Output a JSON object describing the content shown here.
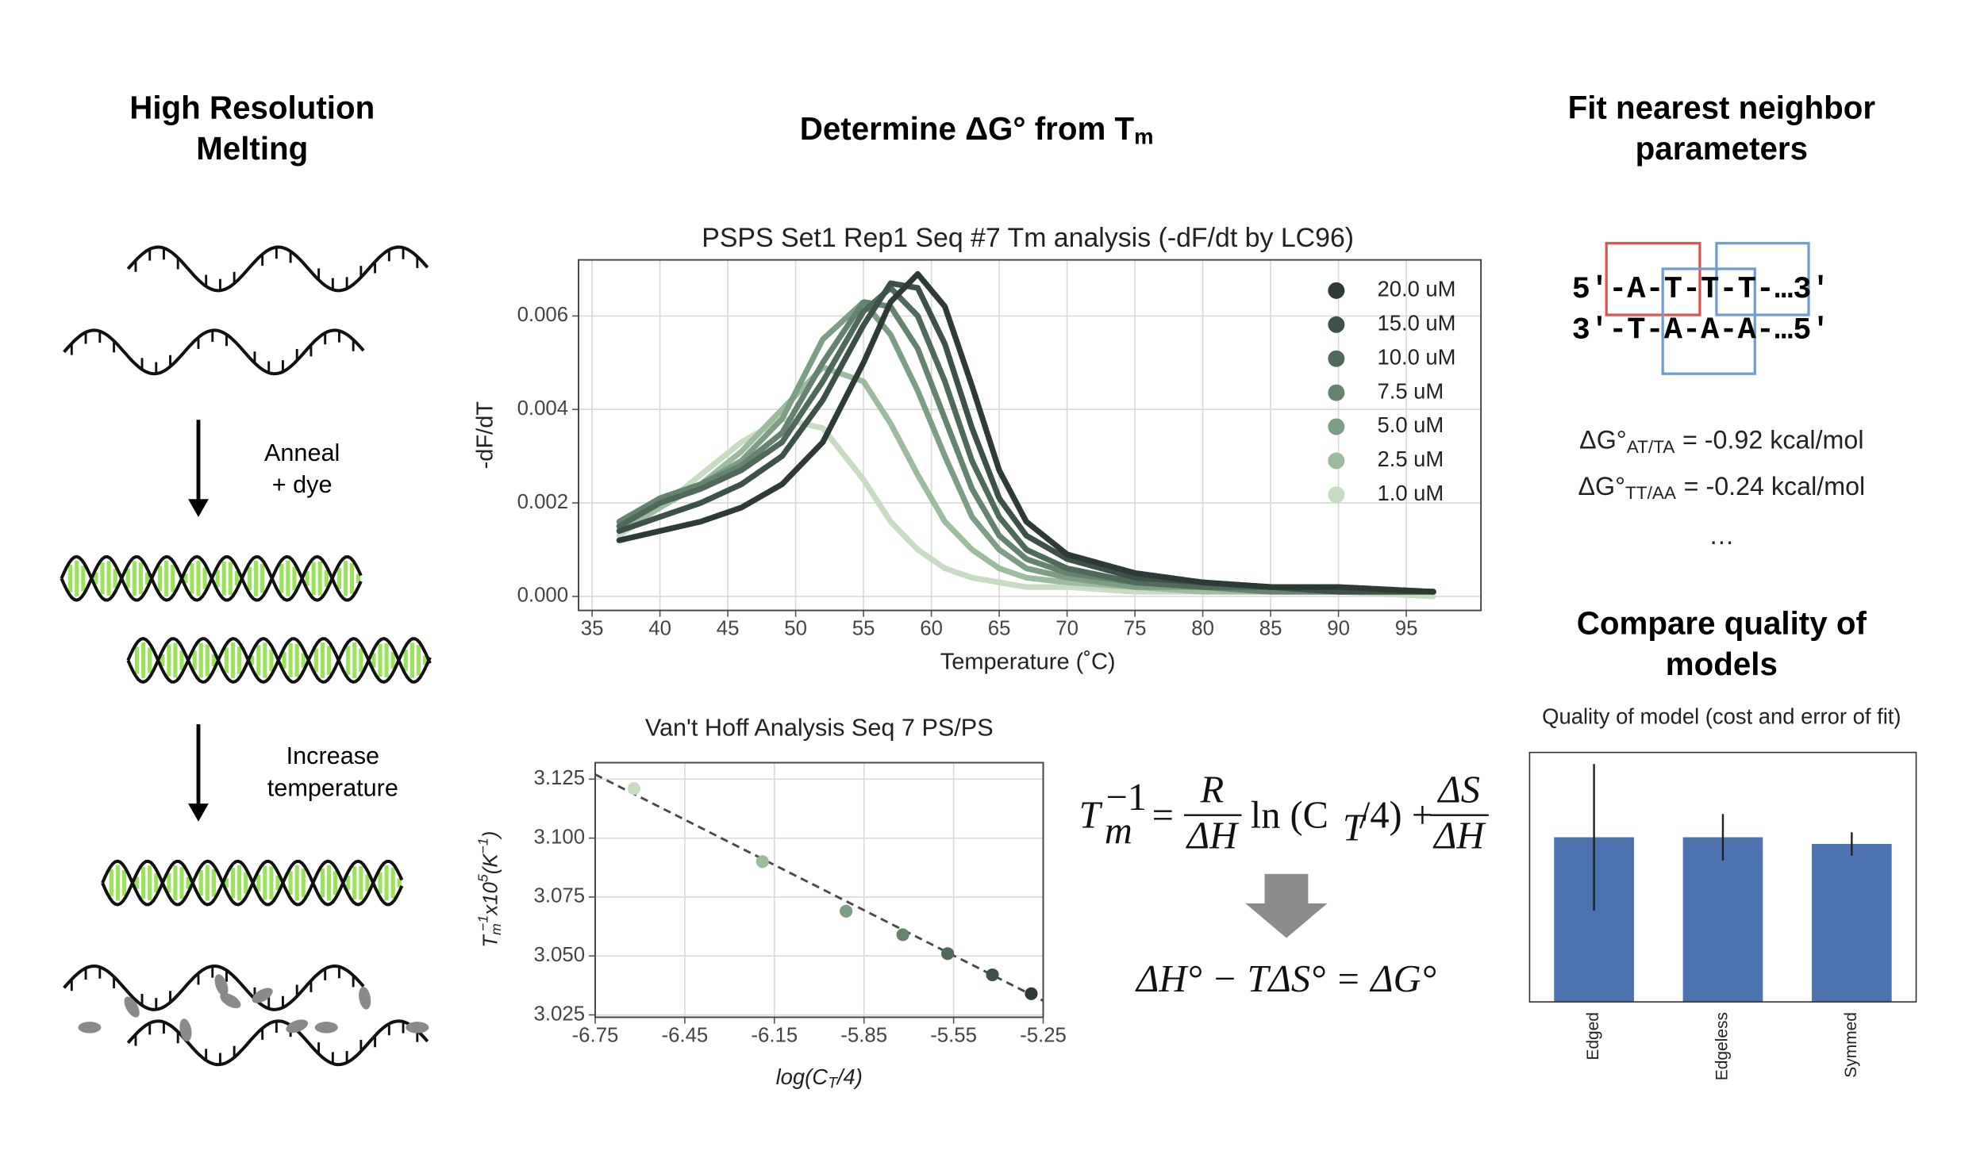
{
  "panel_titles": {
    "melting": [
      "High Resolution",
      "Melting"
    ],
    "determine": {
      "text": "Determine ΔG° from T",
      "sub": "m"
    },
    "fit": [
      "Fit nearest neighbor",
      "parameters"
    ],
    "compare": [
      "Compare quality of",
      "models"
    ]
  },
  "steps": {
    "anneal": [
      "Anneal",
      "+ dye"
    ],
    "heat": [
      "Increase",
      "temperature"
    ]
  },
  "sequence": {
    "top": "5′-A-T-T-T-…3′",
    "bottom": "3′-T-A-A-A-…5′"
  },
  "parameters": [
    {
      "symbol": "ΔG°",
      "sub": "AT/TA",
      "text": "= -0.92 kcal/mol"
    },
    {
      "symbol": "ΔG°",
      "sub": "TT/AA",
      "text": "= -0.24 kcal/mol"
    }
  ],
  "more": "…",
  "equations": {
    "vant_hoff": {
      "T": "T",
      "T_sub": "m",
      "T_sup": "−1",
      "equals": "=",
      "R": "R",
      "dH1": "ΔH",
      "ln": "ln (C",
      "C_sub": "T",
      "tail": "/4) +",
      "dS": "ΔS",
      "dH2": "ΔH"
    },
    "gibbs": "ΔH° − TΔS° = ΔG°"
  },
  "chart_data": [
    {
      "type": "line",
      "title": "PSPS Set1 Rep1 Seq #7 Tm analysis (-dF/dt by LC96)",
      "x_label": "Temperature (˚C)",
      "y_label": "-dF/dT",
      "x": [
        37,
        40,
        43,
        46,
        49,
        52,
        55,
        57,
        59,
        61,
        63,
        65,
        67,
        70,
        75,
        80,
        85,
        90,
        97
      ],
      "series": [
        {
          "name": "20.0 uM",
          "color": "#2d3a35",
          "values": [
            0.0012,
            0.0014,
            0.0016,
            0.0019,
            0.0024,
            0.0033,
            0.005,
            0.0063,
            0.0069,
            0.0062,
            0.0045,
            0.0027,
            0.0016,
            0.0009,
            0.0005,
            0.0003,
            0.0002,
            0.0002,
            0.0001
          ]
        },
        {
          "name": "15.0 uM",
          "color": "#3d5148",
          "values": [
            0.0014,
            0.0017,
            0.002,
            0.0024,
            0.003,
            0.0042,
            0.0058,
            0.0067,
            0.0066,
            0.0054,
            0.0036,
            0.0021,
            0.0013,
            0.0008,
            0.0004,
            0.0003,
            0.0002,
            0.0001,
            0.0001
          ]
        },
        {
          "name": "10.0 uM",
          "color": "#4f6a5b",
          "values": [
            0.0015,
            0.002,
            0.0023,
            0.0027,
            0.0033,
            0.0046,
            0.0061,
            0.0066,
            0.006,
            0.0046,
            0.0029,
            0.0017,
            0.001,
            0.0006,
            0.0003,
            0.0002,
            0.0002,
            0.0001,
            0.0001
          ]
        },
        {
          "name": "7.5 uM",
          "color": "#65836f",
          "values": [
            0.0016,
            0.0021,
            0.0024,
            0.0028,
            0.0035,
            0.005,
            0.0063,
            0.0062,
            0.0053,
            0.0038,
            0.0023,
            0.0013,
            0.0008,
            0.0005,
            0.0003,
            0.0002,
            0.0001,
            0.0001,
            0.0001
          ]
        },
        {
          "name": "5.0 uM",
          "color": "#7d9d85",
          "values": [
            0.0015,
            0.002,
            0.0024,
            0.0029,
            0.0038,
            0.0055,
            0.0063,
            0.0056,
            0.0044,
            0.003,
            0.0017,
            0.001,
            0.0006,
            0.0004,
            0.0002,
            0.0002,
            0.0001,
            0.0001,
            0.0001
          ]
        },
        {
          "name": "2.5 uM",
          "color": "#9dbb9e",
          "values": [
            0.0014,
            0.0019,
            0.0024,
            0.0031,
            0.004,
            0.0049,
            0.0046,
            0.0037,
            0.0026,
            0.0016,
            0.001,
            0.0006,
            0.0004,
            0.0003,
            0.0002,
            0.0001,
            0.0001,
            0.0001,
            0.0001
          ]
        },
        {
          "name": "1.0 uM",
          "color": "#c7dcc3",
          "values": [
            0.0013,
            0.0019,
            0.0026,
            0.0033,
            0.0038,
            0.0036,
            0.0025,
            0.0016,
            0.001,
            0.0006,
            0.0004,
            0.0003,
            0.0002,
            0.0002,
            0.0001,
            0.0001,
            0.0001,
            0.0001,
            0
          ]
        }
      ],
      "xlim": [
        34,
        100.5
      ],
      "xticks": [
        35,
        40,
        45,
        50,
        55,
        60,
        65,
        70,
        75,
        80,
        85,
        90,
        95
      ],
      "ylim": [
        -0.0003,
        0.0072
      ],
      "yticks": [
        {
          "value": 0,
          "label": "0.000"
        },
        {
          "value": 0.002,
          "label": "0.002"
        },
        {
          "value": 0.004,
          "label": "0.004"
        },
        {
          "value": 0.006,
          "label": "0.006"
        }
      ],
      "grid": true,
      "legend": "upper right"
    },
    {
      "type": "scatter",
      "title": "Van't Hoff Analysis Seq 7 PS/PS",
      "x_label": {
        "text": "log(C",
        "sub": "T",
        "close": "/4)"
      },
      "y_label": {
        "T": "T",
        "sub": "m",
        "sup": "−1",
        "mid": "x10",
        "exp": "5",
        "unit": "(K",
        "unit_sup": "−1",
        "close": ")"
      },
      "x": [
        -6.62,
        -6.19,
        -5.91,
        -5.72,
        -5.57,
        -5.42,
        -5.29
      ],
      "values": [
        3.121,
        3.09,
        3.069,
        3.059,
        3.051,
        3.042,
        3.034
      ],
      "colors": [
        "#c7dcc3",
        "#9dbb9e",
        "#7d9d85",
        "#65836f",
        "#4f6a5b",
        "#3d5148",
        "#2d3a35"
      ],
      "fit": {
        "x": [
          -6.75,
          -5.25
        ],
        "values": [
          3.127,
          3.031
        ],
        "color": "#4a4a4a"
      },
      "xlim": [
        -6.75,
        -5.25
      ],
      "xticks": [
        -6.75,
        -6.45,
        -6.15,
        -5.85,
        -5.55,
        -5.25
      ],
      "ylim": [
        3.024,
        3.132
      ],
      "yticks": [
        3.025,
        {
          "value": 3.05,
          "label": "3.050"
        },
        3.075,
        {
          "value": 3.1,
          "label": "3.100"
        },
        3.125
      ],
      "grid": true
    },
    {
      "type": "bar",
      "title": "Quality of model (cost and error of fit)",
      "categories": [
        "Edged",
        "Edgeless",
        "Symmed"
      ],
      "values": [
        0.99,
        0.99,
        0.95
      ],
      "errors": [
        0.44,
        0.14,
        0.07
      ],
      "color": "#4c72b0",
      "ylim": [
        0,
        1.5
      ]
    }
  ]
}
